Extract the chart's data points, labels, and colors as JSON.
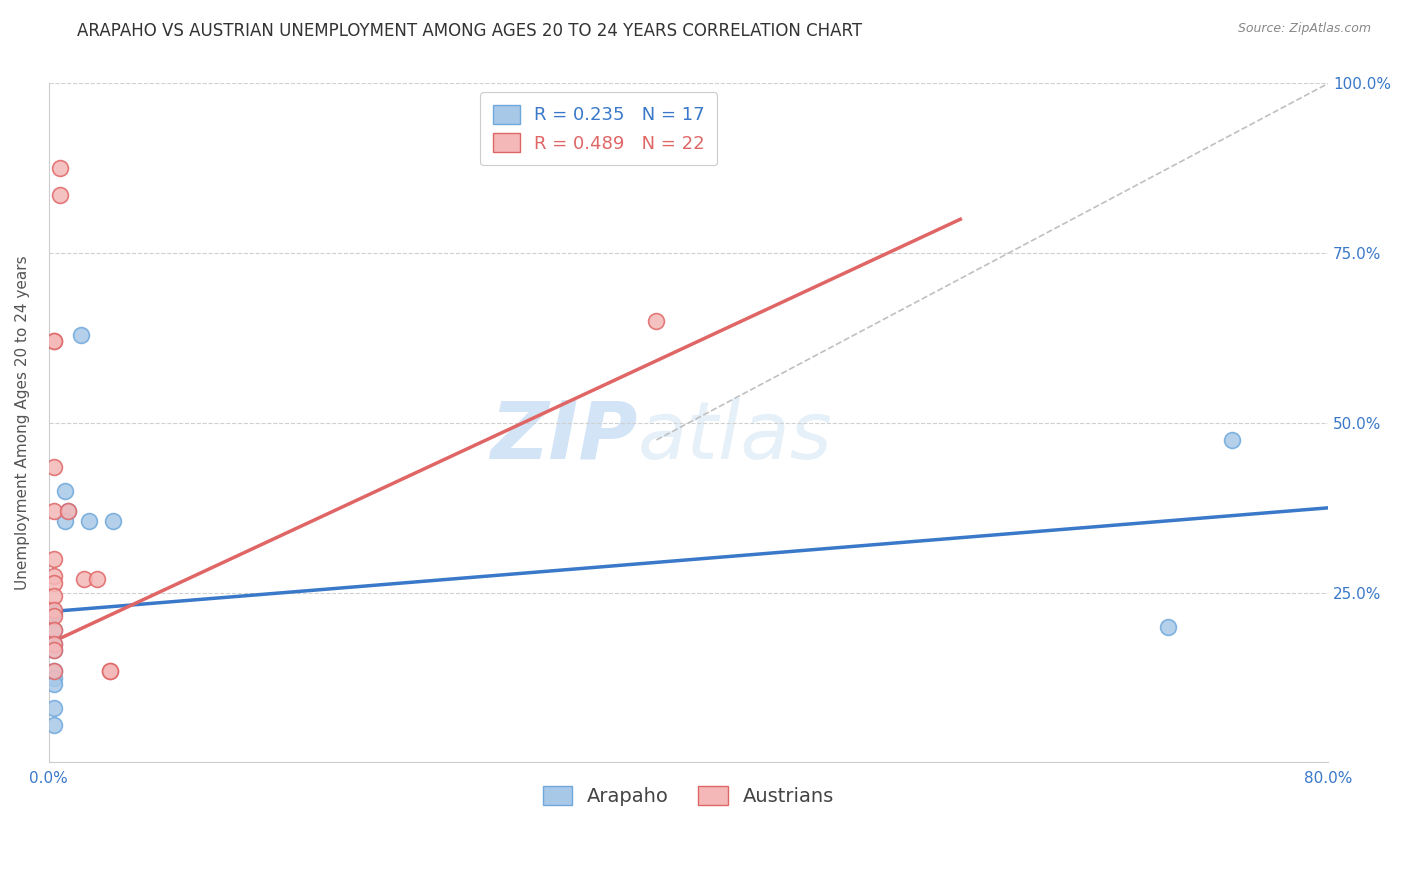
{
  "title": "ARAPAHO VS AUSTRIAN UNEMPLOYMENT AMONG AGES 20 TO 24 YEARS CORRELATION CHART",
  "source": "Source: ZipAtlas.com",
  "ylabel": "Unemployment Among Ages 20 to 24 years",
  "xlim": [
    0.0,
    0.8
  ],
  "ylim": [
    0.0,
    1.0
  ],
  "xticks": [
    0.0,
    0.16,
    0.32,
    0.48,
    0.64,
    0.8
  ],
  "xtick_labels": [
    "0.0%",
    "",
    "",
    "",
    "",
    "80.0%"
  ],
  "ytick_labels": [
    "",
    "25.0%",
    "50.0%",
    "75.0%",
    "100.0%"
  ],
  "yticks": [
    0.0,
    0.25,
    0.5,
    0.75,
    1.0
  ],
  "arapaho_color": "#a8c8e8",
  "arapaho_edge_color": "#6fa8dc",
  "austrian_color": "#f4b8b8",
  "austrian_edge_color": "#e06666",
  "arapaho_scatter_x": [
    0.02,
    0.01,
    0.012,
    0.01,
    0.003,
    0.003,
    0.003,
    0.003,
    0.003,
    0.003,
    0.003,
    0.025,
    0.04,
    0.74,
    0.7,
    0.003,
    0.003
  ],
  "arapaho_scatter_y": [
    0.63,
    0.4,
    0.37,
    0.355,
    0.22,
    0.195,
    0.175,
    0.165,
    0.135,
    0.125,
    0.115,
    0.355,
    0.355,
    0.475,
    0.2,
    0.08,
    0.055
  ],
  "austrian_scatter_x": [
    0.007,
    0.007,
    0.003,
    0.003,
    0.003,
    0.003,
    0.003,
    0.003,
    0.003,
    0.003,
    0.012,
    0.022,
    0.03,
    0.038,
    0.038,
    0.38,
    0.003,
    0.003,
    0.003,
    0.003,
    0.003,
    0.003
  ],
  "austrian_scatter_y": [
    0.875,
    0.835,
    0.435,
    0.37,
    0.3,
    0.275,
    0.265,
    0.245,
    0.225,
    0.215,
    0.37,
    0.27,
    0.27,
    0.135,
    0.135,
    0.65,
    0.62,
    0.62,
    0.195,
    0.175,
    0.165,
    0.135
  ],
  "arapaho_line_x": [
    0.0,
    0.8
  ],
  "arapaho_line_y": [
    0.222,
    0.375
  ],
  "austrian_line_x": [
    0.0,
    0.57
  ],
  "austrian_line_y": [
    0.175,
    0.8
  ],
  "diagonal_line_x": [
    0.38,
    0.8
  ],
  "diagonal_line_y": [
    0.475,
    1.0
  ],
  "watermark_zip": "ZIP",
  "watermark_atlas": "atlas",
  "scatter_size": 130,
  "title_fontsize": 12,
  "axis_label_fontsize": 11,
  "tick_fontsize": 11,
  "legend_fontsize": 13,
  "arapaho_R": "0.235",
  "arapaho_N": "17",
  "austrian_R": "0.489",
  "austrian_N": "22"
}
